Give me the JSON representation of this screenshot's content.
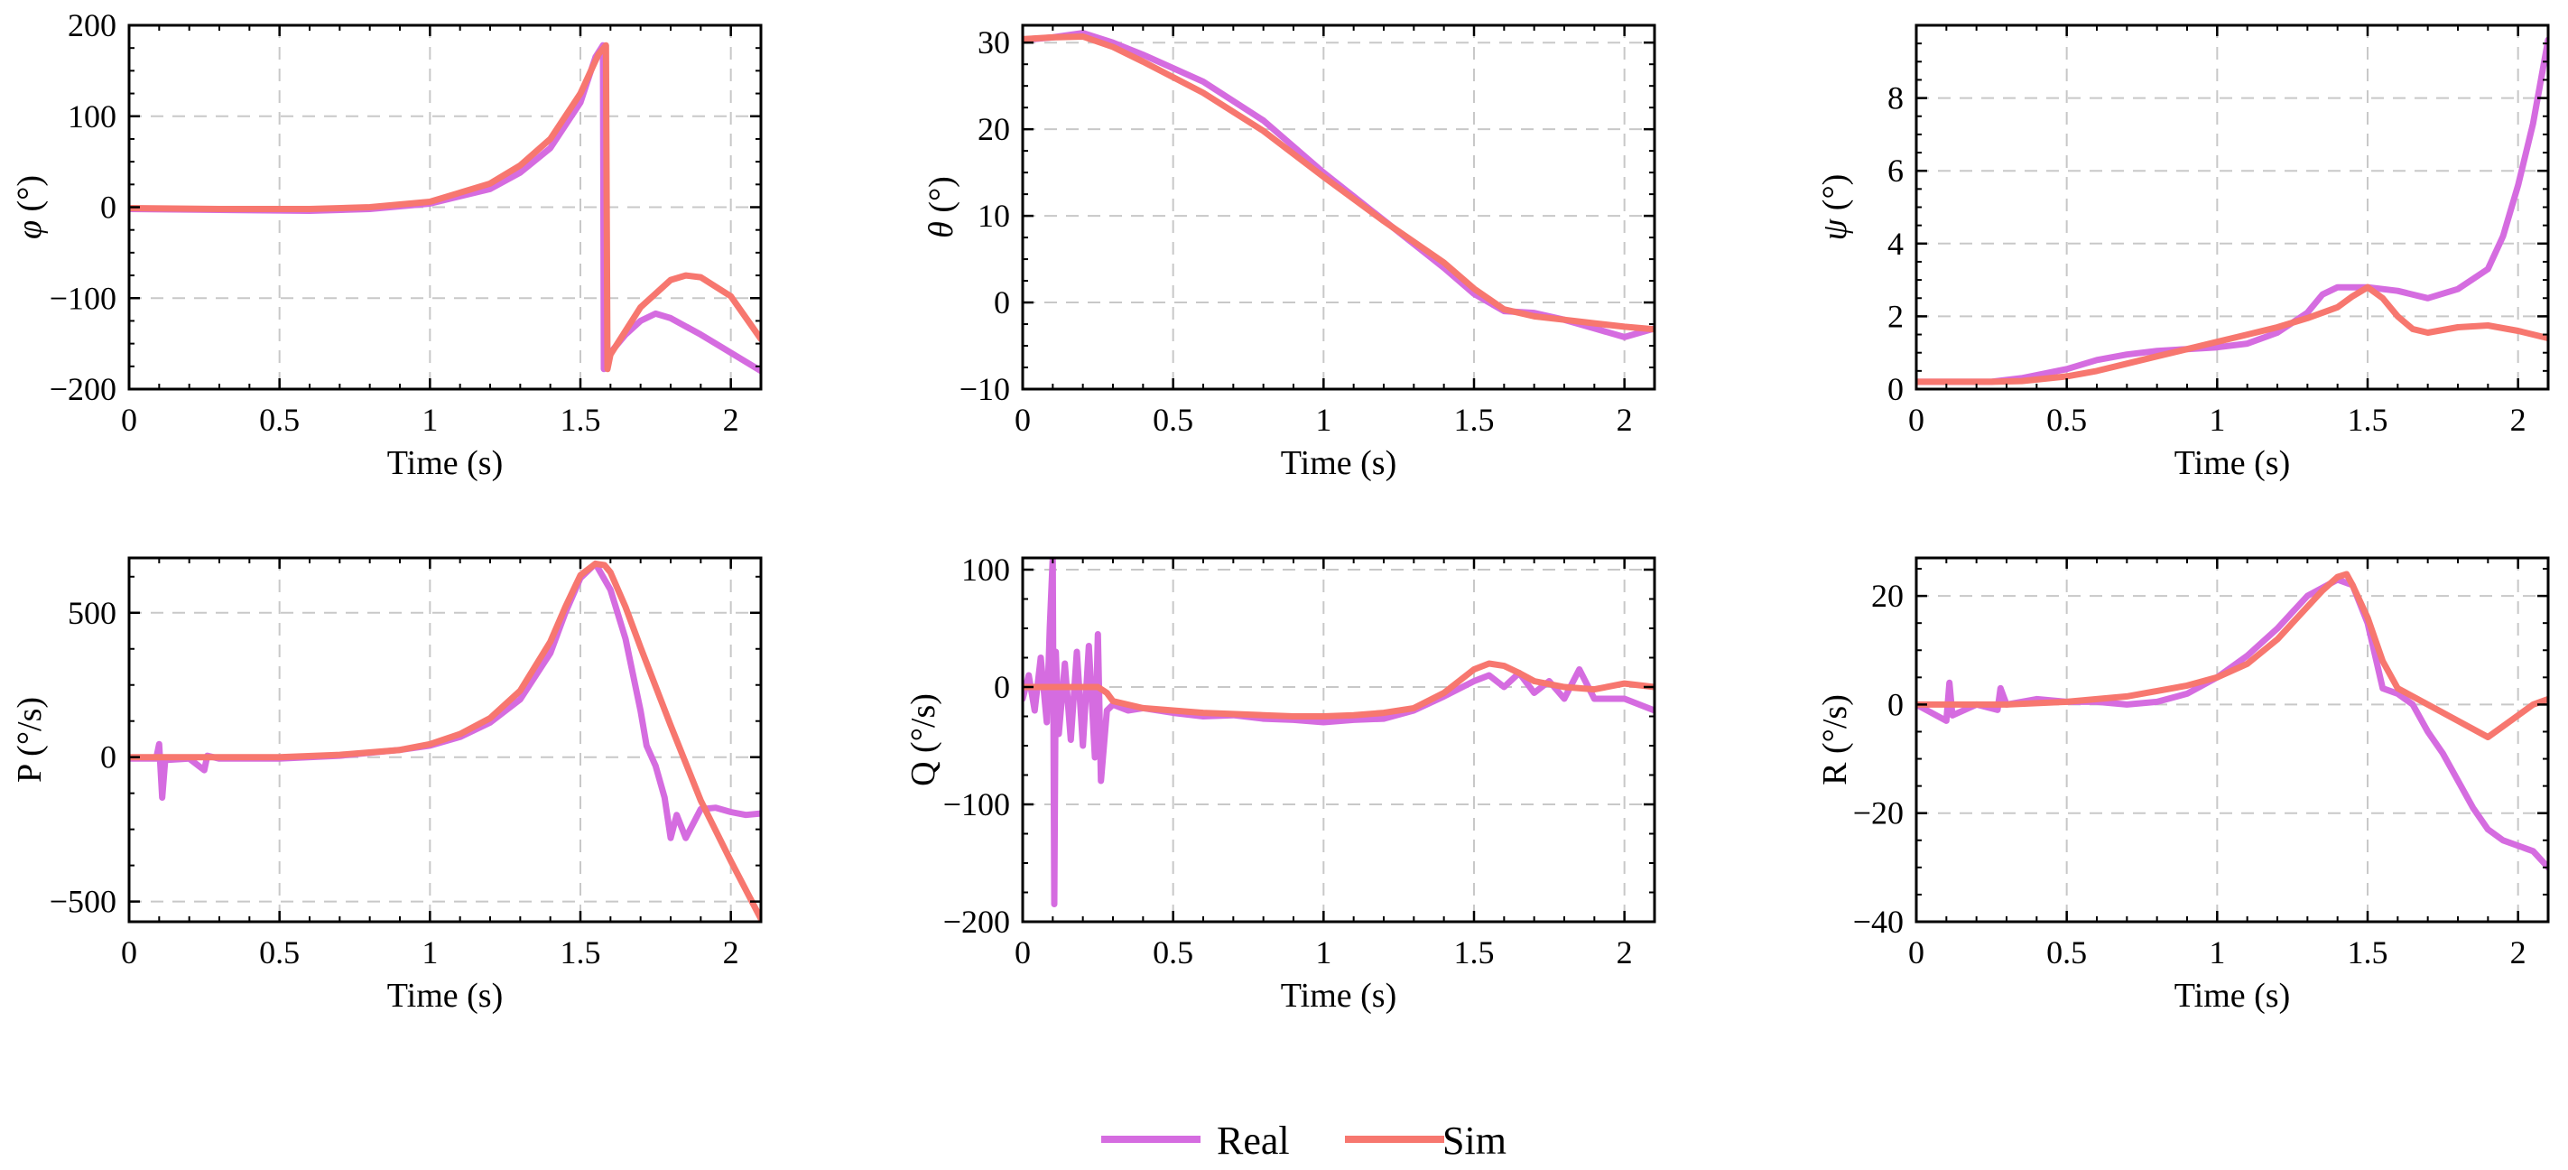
{
  "colors": {
    "real": "#d56ce0",
    "sim": "#f7776f",
    "grid": "#c8c8c8",
    "axis": "#000000"
  },
  "legend": {
    "placement": "bottom-center",
    "entries": [
      {
        "key": "real",
        "label": "Real"
      },
      {
        "key": "sim",
        "label": "Sim"
      }
    ]
  },
  "chart_data": [
    {
      "id": "phi",
      "type": "line",
      "xlabel": "Time (s)",
      "ylabel_sym": "φ",
      "ylabel_unit": " (°)",
      "xlim": [
        0,
        2.1
      ],
      "ylim": [
        -200,
        200
      ],
      "xticks": [
        0,
        0.5,
        1,
        1.5,
        2
      ],
      "xtick_labels": [
        "0",
        "0.5",
        "1",
        "1.5",
        "2"
      ],
      "yticks": [
        -200,
        -100,
        0,
        100,
        200
      ],
      "ytick_labels": [
        "−200",
        "−100",
        "0",
        "100",
        "200"
      ],
      "series": [
        {
          "name": "Real",
          "key": "real",
          "x": [
            0,
            0.3,
            0.6,
            0.8,
            1.0,
            1.2,
            1.3,
            1.4,
            1.5,
            1.55,
            1.575,
            1.578,
            1.6,
            1.65,
            1.7,
            1.75,
            1.8,
            1.9,
            2.0,
            2.1
          ],
          "y": [
            -2,
            -3,
            -4,
            -2,
            4,
            20,
            38,
            65,
            115,
            165,
            178,
            -178,
            -160,
            -140,
            -125,
            -117,
            -122,
            -140,
            -160,
            -180
          ]
        },
        {
          "name": "Sim",
          "key": "sim",
          "x": [
            0,
            0.3,
            0.6,
            0.8,
            1.0,
            1.2,
            1.3,
            1.4,
            1.5,
            1.56,
            1.585,
            1.59,
            1.6,
            1.7,
            1.8,
            1.85,
            1.9,
            2.0,
            2.1
          ],
          "y": [
            -1,
            -2,
            -2,
            0,
            6,
            26,
            46,
            75,
            125,
            168,
            178,
            -178,
            -162,
            -110,
            -80,
            -75,
            -77,
            -98,
            -145
          ]
        }
      ]
    },
    {
      "id": "theta",
      "type": "line",
      "xlabel": "Time (s)",
      "ylabel_sym": "θ",
      "ylabel_unit": " (°)",
      "xlim": [
        0,
        2.1
      ],
      "ylim": [
        -10,
        32
      ],
      "xticks": [
        0,
        0.5,
        1,
        1.5,
        2
      ],
      "xtick_labels": [
        "0",
        "0.5",
        "1",
        "1.5",
        "2"
      ],
      "yticks": [
        -10,
        0,
        10,
        20,
        30
      ],
      "ytick_labels": [
        "−10",
        "0",
        "10",
        "20",
        "30"
      ],
      "series": [
        {
          "name": "Real",
          "key": "real",
          "x": [
            0,
            0.1,
            0.2,
            0.3,
            0.4,
            0.6,
            0.8,
            1.0,
            1.2,
            1.4,
            1.5,
            1.6,
            1.7,
            1.8,
            1.9,
            2.0,
            2.1
          ],
          "y": [
            30.3,
            30.6,
            31.1,
            30,
            28.6,
            25.5,
            21,
            15,
            9.5,
            4,
            1,
            -1,
            -1.2,
            -2,
            -3,
            -4,
            -3
          ]
        },
        {
          "name": "Sim",
          "key": "sim",
          "x": [
            0,
            0.1,
            0.2,
            0.3,
            0.4,
            0.6,
            0.8,
            1.0,
            1.2,
            1.4,
            1.5,
            1.6,
            1.7,
            1.8,
            1.9,
            2.0,
            2.1
          ],
          "y": [
            30.4,
            30.6,
            30.7,
            29.5,
            27.8,
            24.2,
            19.8,
            14.5,
            9.4,
            4.6,
            1.6,
            -0.8,
            -1.6,
            -2,
            -2.4,
            -2.8,
            -3.1
          ]
        }
      ]
    },
    {
      "id": "psi",
      "type": "line",
      "xlabel": "Time (s)",
      "ylabel_sym": "ψ",
      "ylabel_unit": " (°)",
      "xlim": [
        0,
        2.1
      ],
      "ylim": [
        0,
        10
      ],
      "xticks": [
        0,
        0.5,
        1,
        1.5,
        2
      ],
      "xtick_labels": [
        "0",
        "0.5",
        "1",
        "1.5",
        "2"
      ],
      "yticks": [
        0,
        2,
        4,
        6,
        8
      ],
      "ytick_labels": [
        "0",
        "2",
        "4",
        "6",
        "8"
      ],
      "series": [
        {
          "name": "Real",
          "key": "real",
          "x": [
            0,
            0.25,
            0.35,
            0.5,
            0.6,
            0.7,
            0.8,
            0.9,
            1.0,
            1.1,
            1.2,
            1.3,
            1.35,
            1.4,
            1.45,
            1.5,
            1.55,
            1.6,
            1.7,
            1.8,
            1.9,
            1.95,
            2.0,
            2.05,
            2.1
          ],
          "y": [
            0.2,
            0.2,
            0.3,
            0.55,
            0.8,
            0.95,
            1.05,
            1.1,
            1.15,
            1.25,
            1.55,
            2.1,
            2.6,
            2.8,
            2.8,
            2.8,
            2.75,
            2.7,
            2.5,
            2.75,
            3.3,
            4.2,
            5.6,
            7.3,
            9.6
          ]
        },
        {
          "name": "Sim",
          "key": "sim",
          "x": [
            0,
            0.25,
            0.35,
            0.5,
            0.6,
            0.7,
            0.8,
            0.9,
            1.0,
            1.1,
            1.2,
            1.3,
            1.4,
            1.45,
            1.5,
            1.55,
            1.6,
            1.65,
            1.7,
            1.8,
            1.9,
            2.0,
            2.1
          ],
          "y": [
            0.2,
            0.2,
            0.22,
            0.35,
            0.5,
            0.7,
            0.9,
            1.1,
            1.3,
            1.5,
            1.7,
            1.95,
            2.25,
            2.55,
            2.8,
            2.5,
            2.0,
            1.65,
            1.55,
            1.7,
            1.75,
            1.6,
            1.4
          ]
        }
      ]
    },
    {
      "id": "P",
      "type": "line",
      "xlabel": "Time (s)",
      "ylabel_sym": "P",
      "ylabel_unit": " (°/s)",
      "xlim": [
        0,
        2.1
      ],
      "ylim": [
        -570,
        690
      ],
      "xticks": [
        0,
        0.5,
        1,
        1.5,
        2
      ],
      "xtick_labels": [
        "0",
        "0.5",
        "1",
        "1.5",
        "2"
      ],
      "yticks": [
        -500,
        0,
        500
      ],
      "ytick_labels": [
        "−500",
        "0",
        "500"
      ],
      "series": [
        {
          "name": "Real",
          "key": "real",
          "x": [
            0,
            0.09,
            0.1,
            0.11,
            0.12,
            0.2,
            0.25,
            0.26,
            0.3,
            0.5,
            0.7,
            0.9,
            1.0,
            1.1,
            1.2,
            1.3,
            1.4,
            1.45,
            1.5,
            1.55,
            1.6,
            1.65,
            1.7,
            1.72,
            1.75,
            1.78,
            1.8,
            1.82,
            1.85,
            1.9,
            1.95,
            2.0,
            2.05,
            2.1
          ],
          "y": [
            -5,
            -5,
            45,
            -140,
            -10,
            -5,
            -45,
            5,
            -5,
            -5,
            5,
            25,
            40,
            70,
            120,
            200,
            360,
            500,
            620,
            670,
            580,
            410,
            160,
            40,
            -30,
            -140,
            -280,
            -200,
            -280,
            -180,
            -175,
            -190,
            -200,
            -195
          ]
        },
        {
          "name": "Sim",
          "key": "sim",
          "x": [
            0,
            0.3,
            0.5,
            0.7,
            0.9,
            1.0,
            1.1,
            1.2,
            1.3,
            1.4,
            1.45,
            1.5,
            1.55,
            1.58,
            1.6,
            1.65,
            1.7,
            1.8,
            1.9,
            2.0,
            2.1
          ],
          "y": [
            0,
            0,
            0,
            8,
            25,
            45,
            80,
            135,
            230,
            400,
            520,
            630,
            670,
            665,
            640,
            520,
            380,
            110,
            -150,
            -360,
            -560
          ]
        }
      ]
    },
    {
      "id": "Q",
      "type": "line",
      "xlabel": "Time (s)",
      "ylabel_sym": "Q",
      "ylabel_unit": " (°/s)",
      "xlim": [
        0,
        2.1
      ],
      "ylim": [
        -200,
        110
      ],
      "xticks": [
        0,
        0.5,
        1,
        1.5,
        2
      ],
      "xtick_labels": [
        "0",
        "0.5",
        "1",
        "1.5",
        "2"
      ],
      "yticks": [
        -200,
        -100,
        0,
        100
      ],
      "ytick_labels": [
        "−200",
        "−100",
        "0",
        "100"
      ],
      "series": [
        {
          "name": "Real",
          "key": "real",
          "x": [
            0,
            0.02,
            0.04,
            0.06,
            0.08,
            0.09,
            0.1,
            0.105,
            0.11,
            0.12,
            0.14,
            0.16,
            0.18,
            0.2,
            0.22,
            0.24,
            0.25,
            0.26,
            0.28,
            0.3,
            0.35,
            0.4,
            0.5,
            0.6,
            0.7,
            0.8,
            0.9,
            1.0,
            1.1,
            1.2,
            1.3,
            1.4,
            1.5,
            1.55,
            1.6,
            1.65,
            1.7,
            1.75,
            1.8,
            1.85,
            1.9,
            2.0,
            2.1
          ],
          "y": [
            -10,
            10,
            -20,
            25,
            -30,
            50,
            110,
            -185,
            30,
            -40,
            20,
            -45,
            30,
            -50,
            35,
            -60,
            45,
            -80,
            -20,
            -15,
            -20,
            -18,
            -22,
            -25,
            -24,
            -27,
            -28,
            -30,
            -28,
            -27,
            -20,
            -8,
            5,
            10,
            0,
            12,
            -5,
            5,
            -10,
            15,
            -10,
            -10,
            -20
          ]
        },
        {
          "name": "Sim",
          "key": "sim",
          "x": [
            0,
            0.1,
            0.2,
            0.25,
            0.28,
            0.3,
            0.4,
            0.5,
            0.6,
            0.7,
            0.8,
            0.9,
            1.0,
            1.1,
            1.2,
            1.3,
            1.4,
            1.5,
            1.55,
            1.6,
            1.65,
            1.7,
            1.8,
            1.9,
            2.0,
            2.1
          ],
          "y": [
            0,
            0,
            0,
            0,
            -5,
            -12,
            -18,
            -20,
            -22,
            -23,
            -24,
            -25,
            -25,
            -24,
            -22,
            -18,
            -5,
            15,
            20,
            18,
            12,
            5,
            0,
            -2,
            3,
            0
          ]
        }
      ]
    },
    {
      "id": "R",
      "type": "line",
      "xlabel": "Time (s)",
      "ylabel_sym": "R",
      "ylabel_unit": " (°/s)",
      "xlim": [
        0,
        2.1
      ],
      "ylim": [
        -40,
        27
      ],
      "xticks": [
        0,
        0.5,
        1,
        1.5,
        2
      ],
      "xtick_labels": [
        "0",
        "0.5",
        "1",
        "1.5",
        "2"
      ],
      "yticks": [
        -40,
        -20,
        0,
        20
      ],
      "ytick_labels": [
        "−40",
        "−20",
        "0",
        "20"
      ],
      "series": [
        {
          "name": "Real",
          "key": "real",
          "x": [
            0,
            0.1,
            0.11,
            0.12,
            0.2,
            0.27,
            0.28,
            0.3,
            0.4,
            0.5,
            0.6,
            0.7,
            0.8,
            0.9,
            1.0,
            1.1,
            1.2,
            1.3,
            1.4,
            1.45,
            1.5,
            1.55,
            1.6,
            1.65,
            1.7,
            1.75,
            1.8,
            1.85,
            1.9,
            1.95,
            2.0,
            2.05,
            2.1
          ],
          "y": [
            0,
            -3,
            4,
            -2,
            0,
            -1,
            3,
            0,
            1,
            0.5,
            0.5,
            0,
            0.5,
            2,
            5,
            9,
            14,
            20,
            23,
            22,
            15,
            3,
            2,
            0,
            -5,
            -9,
            -14,
            -19,
            -23,
            -25,
            -26,
            -27,
            -30
          ]
        },
        {
          "name": "Sim",
          "key": "sim",
          "x": [
            0,
            0.3,
            0.5,
            0.7,
            0.8,
            0.9,
            1.0,
            1.1,
            1.2,
            1.3,
            1.35,
            1.4,
            1.43,
            1.45,
            1.5,
            1.55,
            1.6,
            1.7,
            1.8,
            1.9,
            1.95,
            2.0,
            2.05,
            2.1
          ],
          "y": [
            0,
            0,
            0.5,
            1.5,
            2.5,
            3.5,
            5,
            7.5,
            12,
            18,
            21,
            23.5,
            24,
            22,
            16,
            8,
            3,
            0,
            -3,
            -6,
            -4,
            -2,
            0,
            1
          ]
        }
      ]
    }
  ]
}
